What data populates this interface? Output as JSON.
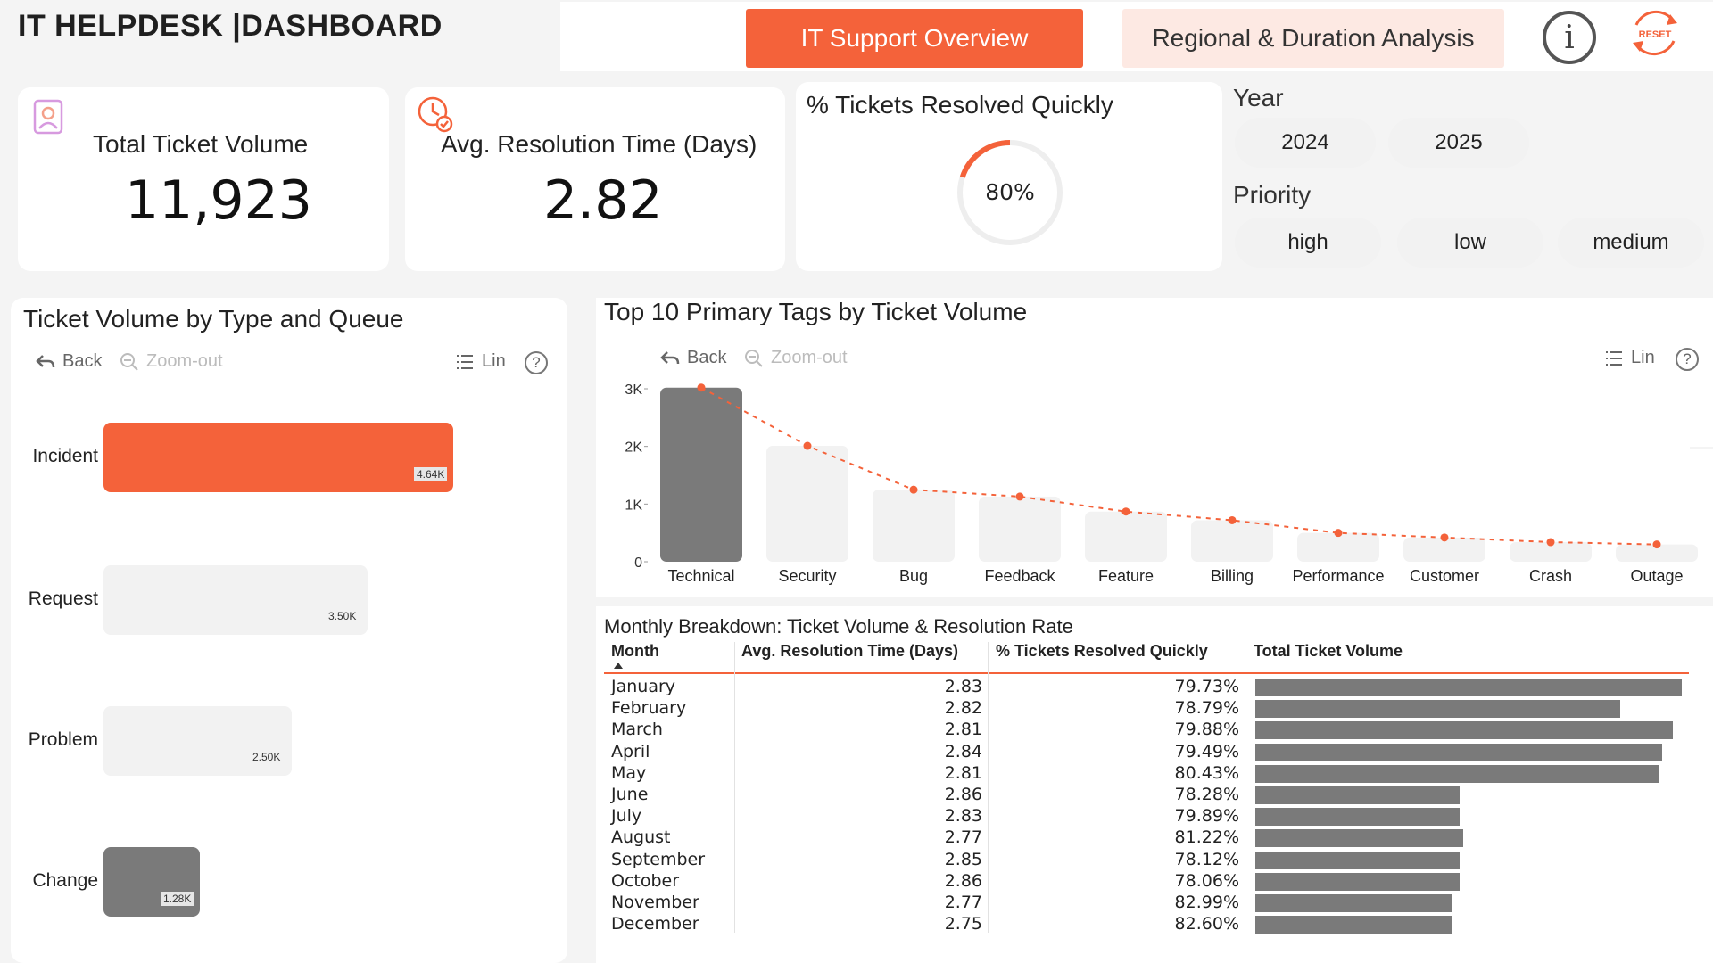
{
  "header": {
    "title": "IT HELPDESK  |DASHBOARD",
    "tab_overview": "IT Support Overview",
    "tab_regional": "Regional & Duration Analysis",
    "info_glyph": "i",
    "reset_label": "RESET"
  },
  "kpis": {
    "total_volume": {
      "title": "Total Ticket Volume",
      "value": "11,923",
      "icon": "user-profile-icon"
    },
    "avg_resolution": {
      "title": "Avg. Resolution Time (Days)",
      "value": "2.82",
      "icon": "clock-check-icon"
    },
    "quick_resolved": {
      "title": "% Tickets Resolved Quickly",
      "value": "80%",
      "fraction": 0.8
    }
  },
  "filters": {
    "year_label": "Year",
    "years": [
      "2024",
      "2025"
    ],
    "priority_label": "Priority",
    "priorities": [
      "high",
      "low",
      "medium"
    ]
  },
  "type_queue": {
    "title": "Ticket Volume by Type and Queue",
    "toolbar": {
      "back": "Back",
      "zoom": "Zoom-out",
      "lin": "Lin",
      "help": "?"
    }
  },
  "top_tags": {
    "title": "Top 10 Primary Tags by Ticket Volume",
    "toolbar": {
      "back": "Back",
      "zoom": "Zoom-out",
      "lin": "Lin",
      "help": "?"
    }
  },
  "chart_data": [
    {
      "type": "bar",
      "orientation": "horizontal",
      "title": "Ticket Volume by Type and Queue",
      "categories": [
        "Incident",
        "Request",
        "Problem",
        "Change"
      ],
      "values": [
        4640,
        3500,
        2500,
        1280
      ],
      "data_labels": [
        "4.64K",
        "3.50K",
        "2.50K",
        "1.28K"
      ],
      "colors": [
        "#f4623a",
        "#f2f2f2",
        "#f2f2f2",
        "#7a7a7a"
      ]
    },
    {
      "type": "bar",
      "title": "Top 10 Primary Tags by Ticket Volume",
      "categories": [
        "Technical",
        "Security",
        "Bug",
        "Feedback",
        "Feature",
        "Billing",
        "Performance",
        "Customer",
        "Crash",
        "Outage"
      ],
      "values": [
        3020,
        2010,
        1250,
        1130,
        870,
        720,
        500,
        420,
        340,
        300
      ],
      "yticks": [
        "0",
        "1K",
        "2K",
        "3K"
      ],
      "ylim": [
        0,
        3000
      ],
      "trend_line": "dashed",
      "colors": {
        "highlight": "#7a7a7a",
        "bar": "#f2f2f2",
        "trend": "#f4623a"
      }
    }
  ],
  "monthly": {
    "title": "Monthly Breakdown: Ticket Volume & Resolution Rate",
    "headers": [
      "Month",
      "Avg. Resolution Time (Days)",
      "% Tickets Resolved Quickly",
      "Total Ticket Volume"
    ],
    "rows": [
      {
        "month": "January",
        "avg": "2.83",
        "pct": "79.73%",
        "volume_share": 1.0
      },
      {
        "month": "February",
        "avg": "2.82",
        "pct": "78.79%",
        "volume_share": 0.855
      },
      {
        "month": "March",
        "avg": "2.81",
        "pct": "79.88%",
        "volume_share": 0.98
      },
      {
        "month": "April",
        "avg": "2.84",
        "pct": "79.49%",
        "volume_share": 0.955
      },
      {
        "month": "May",
        "avg": "2.81",
        "pct": "80.43%",
        "volume_share": 0.945
      },
      {
        "month": "June",
        "avg": "2.86",
        "pct": "78.28%",
        "volume_share": 0.48
      },
      {
        "month": "July",
        "avg": "2.83",
        "pct": "79.89%",
        "volume_share": 0.48
      },
      {
        "month": "August",
        "avg": "2.77",
        "pct": "81.22%",
        "volume_share": 0.488
      },
      {
        "month": "September",
        "avg": "2.85",
        "pct": "78.12%",
        "volume_share": 0.48
      },
      {
        "month": "October",
        "avg": "2.86",
        "pct": "78.06%",
        "volume_share": 0.48
      },
      {
        "month": "November",
        "avg": "2.77",
        "pct": "82.99%",
        "volume_share": 0.46
      },
      {
        "month": "December",
        "avg": "2.75",
        "pct": "82.60%",
        "volume_share": 0.46
      }
    ]
  },
  "colors": {
    "accent": "#f4623a",
    "accent_light": "#fde9e3",
    "gray_bar": "#7a7a7a",
    "light_bar": "#f2f2f2"
  }
}
